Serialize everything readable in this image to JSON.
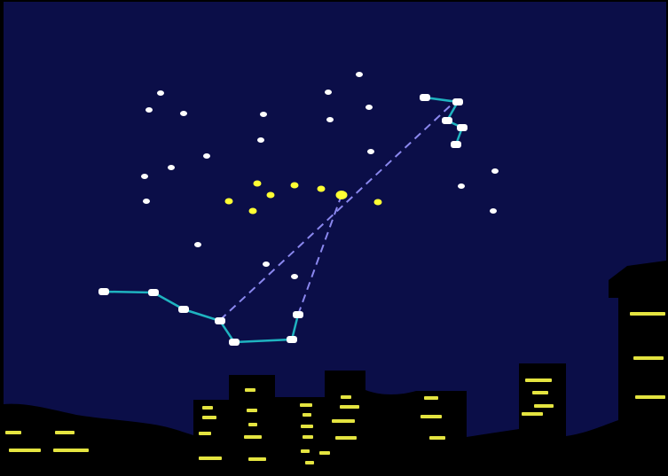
{
  "scene": {
    "colors": {
      "sky": "#0b0e48",
      "frame": "#000000",
      "star_white": "#ffffff",
      "star_yellow": "#ffff33",
      "constellation_line": "#1fb3c0",
      "pointer_line": "#8a87ee",
      "city_silhouette": "#000000",
      "window_light": "#e4e440"
    },
    "icons": [
      "white-star-icon",
      "yellow-star-icon",
      "constellation-star-icon"
    ]
  }
}
